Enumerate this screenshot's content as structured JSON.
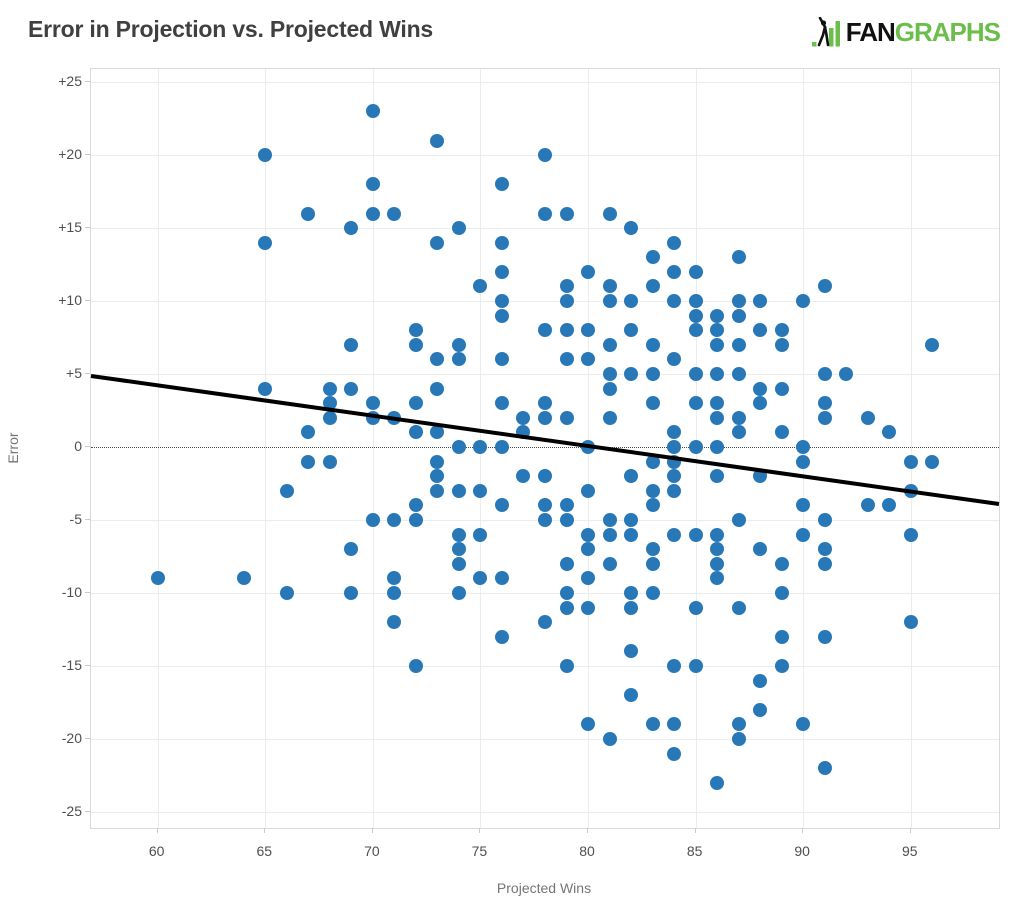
{
  "header": {
    "title": "Error in Projection vs. Projected Wins",
    "brand": {
      "word_black": "FAN",
      "word_green": "GRAPHS",
      "green": "#6cbe4c",
      "black": "#111111"
    }
  },
  "chart_data": {
    "type": "scatter",
    "title": "Error in Projection vs. Projected Wins",
    "xlabel": "Projected Wins",
    "ylabel": "Error",
    "xlim": [
      56.9,
      99.1
    ],
    "ylim": [
      -26.1,
      25.9
    ],
    "x_tick_values": [
      60,
      65,
      70,
      75,
      80,
      85,
      90,
      95
    ],
    "x_tick_labels": [
      "60",
      "65",
      "70",
      "75",
      "80",
      "85",
      "90",
      "95"
    ],
    "y_tick_values": [
      25,
      20,
      15,
      10,
      5,
      0,
      -5,
      -10,
      -15,
      -20,
      -25
    ],
    "y_tick_labels": [
      "+25",
      "+20",
      "+15",
      "+10",
      "+5",
      "0",
      "-5",
      "-10",
      "-15",
      "-20",
      "-25"
    ],
    "grid": true,
    "legend": "none",
    "zero_line": "dotted",
    "point_style": {
      "color": "#2878b8",
      "diameter": 14
    },
    "trend_line": {
      "x1": 56.9,
      "y1": 4.87,
      "x2": 99.1,
      "y2": -3.9,
      "color": "#000000",
      "width": 4
    },
    "points": [
      [
        60,
        -9
      ],
      [
        64,
        -9
      ],
      [
        65,
        20
      ],
      [
        65,
        14
      ],
      [
        65,
        4
      ],
      [
        66,
        -3
      ],
      [
        66,
        -10
      ],
      [
        67,
        16
      ],
      [
        67,
        1
      ],
      [
        67,
        -1
      ],
      [
        68,
        4
      ],
      [
        68,
        3
      ],
      [
        68,
        2
      ],
      [
        68,
        -1
      ],
      [
        69,
        15
      ],
      [
        69,
        7
      ],
      [
        69,
        4
      ],
      [
        69,
        -7
      ],
      [
        69,
        -10
      ],
      [
        70,
        23
      ],
      [
        70,
        18
      ],
      [
        70,
        16
      ],
      [
        70,
        3
      ],
      [
        70,
        2
      ],
      [
        70,
        -5
      ],
      [
        71,
        16
      ],
      [
        71,
        2
      ],
      [
        71,
        -5
      ],
      [
        71,
        -9
      ],
      [
        71,
        -10
      ],
      [
        71,
        -12
      ],
      [
        72,
        8
      ],
      [
        72,
        7
      ],
      [
        72,
        3
      ],
      [
        72,
        1
      ],
      [
        72,
        -4
      ],
      [
        72,
        -5
      ],
      [
        72,
        -15
      ],
      [
        73,
        21
      ],
      [
        73,
        14
      ],
      [
        73,
        6
      ],
      [
        73,
        4
      ],
      [
        73,
        1
      ],
      [
        73,
        -1
      ],
      [
        73,
        -2
      ],
      [
        73,
        -3
      ],
      [
        74,
        15
      ],
      [
        74,
        7
      ],
      [
        74,
        6
      ],
      [
        74,
        0
      ],
      [
        74,
        -3
      ],
      [
        74,
        -6
      ],
      [
        74,
        -7
      ],
      [
        74,
        -8
      ],
      [
        74,
        -10
      ],
      [
        75,
        11
      ],
      [
        75,
        0
      ],
      [
        75,
        -3
      ],
      [
        75,
        -6
      ],
      [
        75,
        -9
      ],
      [
        76,
        18
      ],
      [
        76,
        14
      ],
      [
        76,
        12
      ],
      [
        76,
        10
      ],
      [
        76,
        9
      ],
      [
        76,
        6
      ],
      [
        76,
        3
      ],
      [
        76,
        0
      ],
      [
        76,
        -4
      ],
      [
        76,
        -9
      ],
      [
        76,
        -13
      ],
      [
        77,
        2
      ],
      [
        77,
        1
      ],
      [
        77,
        -2
      ],
      [
        78,
        20
      ],
      [
        78,
        16
      ],
      [
        78,
        8
      ],
      [
        78,
        3
      ],
      [
        78,
        2
      ],
      [
        78,
        -2
      ],
      [
        78,
        -4
      ],
      [
        78,
        -5
      ],
      [
        78,
        -12
      ],
      [
        79,
        16
      ],
      [
        79,
        11
      ],
      [
        79,
        10
      ],
      [
        79,
        8
      ],
      [
        79,
        6
      ],
      [
        79,
        2
      ],
      [
        79,
        -4
      ],
      [
        79,
        -5
      ],
      [
        79,
        -8
      ],
      [
        79,
        -10
      ],
      [
        79,
        -11
      ],
      [
        79,
        -15
      ],
      [
        80,
        12
      ],
      [
        80,
        8
      ],
      [
        80,
        6
      ],
      [
        80,
        0
      ],
      [
        80,
        -3
      ],
      [
        80,
        -6
      ],
      [
        80,
        -7
      ],
      [
        80,
        -9
      ],
      [
        80,
        -11
      ],
      [
        80,
        -19
      ],
      [
        81,
        16
      ],
      [
        81,
        11
      ],
      [
        81,
        10
      ],
      [
        81,
        7
      ],
      [
        81,
        5
      ],
      [
        81,
        4
      ],
      [
        81,
        2
      ],
      [
        81,
        -5
      ],
      [
        81,
        -6
      ],
      [
        81,
        -8
      ],
      [
        81,
        -20
      ],
      [
        82,
        15
      ],
      [
        82,
        10
      ],
      [
        82,
        8
      ],
      [
        82,
        5
      ],
      [
        82,
        -2
      ],
      [
        82,
        -5
      ],
      [
        82,
        -6
      ],
      [
        82,
        -10
      ],
      [
        82,
        -11
      ],
      [
        82,
        -14
      ],
      [
        82,
        -17
      ],
      [
        83,
        13
      ],
      [
        83,
        11
      ],
      [
        83,
        7
      ],
      [
        83,
        5
      ],
      [
        83,
        3
      ],
      [
        83,
        -1
      ],
      [
        83,
        -3
      ],
      [
        83,
        -4
      ],
      [
        83,
        -7
      ],
      [
        83,
        -8
      ],
      [
        83,
        -10
      ],
      [
        83,
        -19
      ],
      [
        84,
        14
      ],
      [
        84,
        12
      ],
      [
        84,
        10
      ],
      [
        84,
        6
      ],
      [
        84,
        1
      ],
      [
        84,
        0
      ],
      [
        84,
        -1
      ],
      [
        84,
        -2
      ],
      [
        84,
        -3
      ],
      [
        84,
        -6
      ],
      [
        84,
        -15
      ],
      [
        84,
        -19
      ],
      [
        84,
        -21
      ],
      [
        85,
        12
      ],
      [
        85,
        10
      ],
      [
        85,
        9
      ],
      [
        85,
        8
      ],
      [
        85,
        5
      ],
      [
        85,
        3
      ],
      [
        85,
        0
      ],
      [
        85,
        -6
      ],
      [
        85,
        -11
      ],
      [
        85,
        -15
      ],
      [
        86,
        9
      ],
      [
        86,
        8
      ],
      [
        86,
        7
      ],
      [
        86,
        5
      ],
      [
        86,
        3
      ],
      [
        86,
        2
      ],
      [
        86,
        0
      ],
      [
        86,
        -2
      ],
      [
        86,
        -6
      ],
      [
        86,
        -7
      ],
      [
        86,
        -8
      ],
      [
        86,
        -9
      ],
      [
        86,
        -23
      ],
      [
        87,
        13
      ],
      [
        87,
        10
      ],
      [
        87,
        9
      ],
      [
        87,
        7
      ],
      [
        87,
        5
      ],
      [
        87,
        2
      ],
      [
        87,
        1
      ],
      [
        87,
        -5
      ],
      [
        87,
        -11
      ],
      [
        87,
        -19
      ],
      [
        87,
        -20
      ],
      [
        88,
        10
      ],
      [
        88,
        8
      ],
      [
        88,
        4
      ],
      [
        88,
        3
      ],
      [
        88,
        -2
      ],
      [
        88,
        -7
      ],
      [
        88,
        -16
      ],
      [
        88,
        -18
      ],
      [
        89,
        8
      ],
      [
        89,
        7
      ],
      [
        89,
        4
      ],
      [
        89,
        1
      ],
      [
        89,
        -8
      ],
      [
        89,
        -10
      ],
      [
        89,
        -13
      ],
      [
        89,
        -15
      ],
      [
        90,
        10
      ],
      [
        90,
        0
      ],
      [
        90,
        -1
      ],
      [
        90,
        -4
      ],
      [
        90,
        -6
      ],
      [
        90,
        -19
      ],
      [
        91,
        11
      ],
      [
        91,
        5
      ],
      [
        91,
        3
      ],
      [
        91,
        2
      ],
      [
        91,
        -5
      ],
      [
        91,
        -7
      ],
      [
        91,
        -8
      ],
      [
        91,
        -13
      ],
      [
        91,
        -22
      ],
      [
        92,
        5
      ],
      [
        93,
        2
      ],
      [
        93,
        -4
      ],
      [
        94,
        1
      ],
      [
        94,
        -4
      ],
      [
        95,
        -1
      ],
      [
        95,
        -3
      ],
      [
        95,
        -6
      ],
      [
        95,
        -12
      ],
      [
        96,
        7
      ],
      [
        96,
        -1
      ]
    ]
  }
}
